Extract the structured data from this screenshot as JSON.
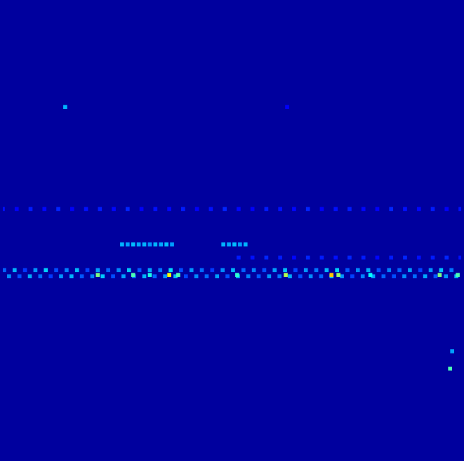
{
  "chart_data": {
    "type": "heatmap",
    "xlim": [
      0,
      661
    ],
    "ylim": [
      0,
      656
    ],
    "tick_labels": false,
    "grid": false,
    "color_range": [
      0,
      1
    ],
    "fill_value": 0.03,
    "cells": [
      [
        2,
        271,
        0.22
      ],
      [
        17,
        271,
        0.3
      ],
      [
        32,
        271,
        0.18
      ],
      [
        47,
        271,
        0.27
      ],
      [
        62,
        271,
        0.33
      ],
      [
        77,
        271,
        0.2
      ],
      [
        92,
        271,
        0.25
      ],
      [
        107,
        271,
        0.31
      ],
      [
        122,
        271,
        0.19
      ],
      [
        137,
        271,
        0.28
      ],
      [
        152,
        271,
        0.22
      ],
      [
        167,
        271,
        0.26
      ],
      [
        182,
        271,
        0.32
      ],
      [
        197,
        271,
        0.21
      ],
      [
        212,
        271,
        0.29
      ],
      [
        227,
        271,
        0.24
      ],
      [
        242,
        271,
        0.34
      ],
      [
        257,
        271,
        0.2
      ],
      [
        272,
        271,
        0.27
      ],
      [
        287,
        271,
        0.23
      ],
      [
        302,
        271,
        0.18
      ],
      [
        317,
        271,
        0.26
      ],
      [
        332,
        271,
        0.3
      ],
      [
        347,
        271,
        0.22
      ],
      [
        362,
        271,
        0.25
      ],
      [
        377,
        271,
        0.2
      ],
      [
        392,
        271,
        0.28
      ],
      [
        407,
        271,
        0.31
      ],
      [
        422,
        271,
        0.19
      ],
      [
        437,
        271,
        0.27
      ],
      [
        452,
        271,
        0.24
      ],
      [
        467,
        271,
        0.3
      ],
      [
        482,
        271,
        0.33
      ],
      [
        497,
        271,
        0.21
      ],
      [
        512,
        271,
        0.26
      ],
      [
        527,
        271,
        0.29
      ],
      [
        542,
        271,
        0.2
      ],
      [
        557,
        271,
        0.25
      ],
      [
        572,
        271,
        0.22
      ],
      [
        587,
        271,
        0.28
      ],
      [
        602,
        271,
        0.19
      ],
      [
        617,
        271,
        0.27
      ],
      [
        632,
        271,
        0.31
      ],
      [
        647,
        271,
        0.24
      ],
      [
        9,
        262,
        0.26
      ],
      [
        24,
        262,
        0.2
      ],
      [
        39,
        262,
        0.29
      ],
      [
        54,
        262,
        0.23
      ],
      [
        69,
        262,
        0.18
      ],
      [
        84,
        262,
        0.27
      ],
      [
        99,
        262,
        0.3
      ],
      [
        114,
        262,
        0.21
      ],
      [
        129,
        262,
        0.25
      ],
      [
        144,
        262,
        0.32
      ],
      [
        159,
        262,
        0.2
      ],
      [
        174,
        262,
        0.28
      ],
      [
        189,
        262,
        0.24
      ],
      [
        204,
        262,
        0.3
      ],
      [
        219,
        262,
        0.22
      ],
      [
        234,
        262,
        0.27
      ],
      [
        249,
        262,
        0.31
      ],
      [
        264,
        262,
        0.19
      ],
      [
        279,
        262,
        0.26
      ],
      [
        294,
        262,
        0.23
      ],
      [
        309,
        262,
        0.28
      ],
      [
        324,
        262,
        0.2
      ],
      [
        339,
        262,
        0.3
      ],
      [
        354,
        262,
        0.25
      ],
      [
        369,
        262,
        0.21
      ],
      [
        384,
        262,
        0.27
      ],
      [
        399,
        262,
        0.24
      ],
      [
        414,
        262,
        0.29
      ],
      [
        429,
        262,
        0.2
      ],
      [
        444,
        262,
        0.26
      ],
      [
        459,
        262,
        0.22
      ],
      [
        474,
        262,
        0.31
      ],
      [
        489,
        262,
        0.27
      ],
      [
        504,
        262,
        0.19
      ],
      [
        519,
        262,
        0.25
      ],
      [
        534,
        262,
        0.28
      ],
      [
        549,
        262,
        0.22
      ],
      [
        564,
        262,
        0.2
      ],
      [
        579,
        262,
        0.26
      ],
      [
        594,
        262,
        0.23
      ],
      [
        609,
        262,
        0.29
      ],
      [
        624,
        262,
        0.21
      ],
      [
        639,
        262,
        0.27
      ],
      [
        654,
        262,
        0.3
      ],
      [
        137,
        264,
        0.5
      ],
      [
        188,
        264,
        0.45
      ],
      [
        212,
        264,
        0.4
      ],
      [
        240,
        264,
        0.62
      ],
      [
        253,
        264,
        0.45
      ],
      [
        338,
        264,
        0.42
      ],
      [
        408,
        264,
        0.55
      ],
      [
        474,
        264,
        0.68
      ],
      [
        484,
        264,
        0.52
      ],
      [
        530,
        264,
        0.38
      ],
      [
        630,
        264,
        0.5
      ],
      [
        656,
        264,
        0.45
      ],
      [
        0,
        359,
        0.14
      ],
      [
        20,
        359,
        0.12
      ],
      [
        40,
        359,
        0.15
      ],
      [
        60,
        359,
        0.13
      ],
      [
        80,
        359,
        0.16
      ],
      [
        100,
        359,
        0.12
      ],
      [
        120,
        359,
        0.14
      ],
      [
        140,
        359,
        0.15
      ],
      [
        160,
        359,
        0.13
      ],
      [
        180,
        359,
        0.16
      ],
      [
        200,
        359,
        0.12
      ],
      [
        220,
        359,
        0.14
      ],
      [
        240,
        359,
        0.13
      ],
      [
        260,
        359,
        0.15
      ],
      [
        280,
        359,
        0.12
      ],
      [
        300,
        359,
        0.14
      ],
      [
        320,
        359,
        0.16
      ],
      [
        340,
        359,
        0.13
      ],
      [
        360,
        359,
        0.12
      ],
      [
        380,
        359,
        0.15
      ],
      [
        400,
        359,
        0.14
      ],
      [
        420,
        359,
        0.13
      ],
      [
        440,
        359,
        0.16
      ],
      [
        460,
        359,
        0.12
      ],
      [
        480,
        359,
        0.14
      ],
      [
        500,
        359,
        0.15
      ],
      [
        520,
        359,
        0.13
      ],
      [
        540,
        359,
        0.12
      ],
      [
        560,
        359,
        0.16
      ],
      [
        580,
        359,
        0.14
      ],
      [
        600,
        359,
        0.13
      ],
      [
        620,
        359,
        0.15
      ],
      [
        640,
        359,
        0.12
      ],
      [
        660,
        359,
        0.14
      ],
      [
        172,
        308,
        0.3
      ],
      [
        180,
        308,
        0.28
      ],
      [
        188,
        308,
        0.31
      ],
      [
        196,
        308,
        0.29
      ],
      [
        204,
        308,
        0.3
      ],
      [
        212,
        308,
        0.27
      ],
      [
        220,
        308,
        0.3
      ],
      [
        228,
        308,
        0.29
      ],
      [
        236,
        308,
        0.31
      ],
      [
        244,
        308,
        0.28
      ],
      [
        318,
        308,
        0.3
      ],
      [
        326,
        308,
        0.29
      ],
      [
        334,
        308,
        0.31
      ],
      [
        342,
        308,
        0.28
      ],
      [
        350,
        308,
        0.3
      ],
      [
        340,
        289,
        0.15
      ],
      [
        360,
        289,
        0.14
      ],
      [
        380,
        289,
        0.16
      ],
      [
        400,
        289,
        0.15
      ],
      [
        420,
        289,
        0.13
      ],
      [
        440,
        289,
        0.16
      ],
      [
        460,
        289,
        0.15
      ],
      [
        480,
        289,
        0.14
      ],
      [
        500,
        289,
        0.16
      ],
      [
        520,
        289,
        0.15
      ],
      [
        540,
        289,
        0.13
      ],
      [
        560,
        289,
        0.15
      ],
      [
        580,
        289,
        0.16
      ],
      [
        600,
        289,
        0.14
      ],
      [
        620,
        289,
        0.15
      ],
      [
        640,
        289,
        0.16
      ],
      [
        660,
        289,
        0.14
      ],
      [
        90,
        506,
        0.3
      ],
      [
        410,
        506,
        0.12
      ],
      [
        645,
        129,
        0.45
      ],
      [
        648,
        154,
        0.28
      ]
    ]
  }
}
